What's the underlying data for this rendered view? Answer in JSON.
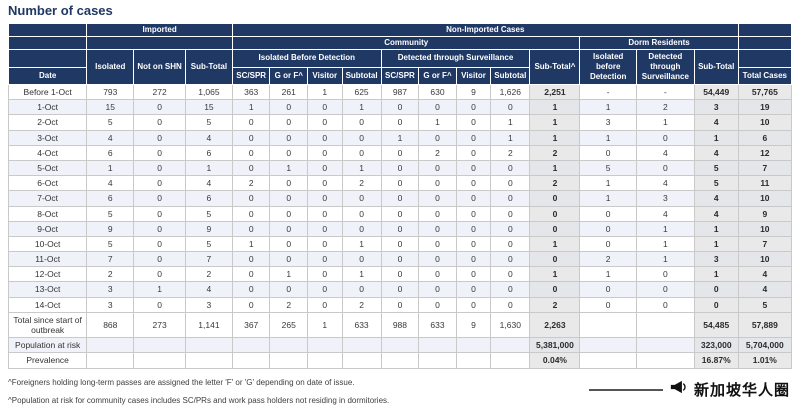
{
  "title": "Number of cases",
  "colors": {
    "header_bg": "#1f3864",
    "title_text": "#1f3864",
    "subtotal_column_bg": "#e9e9e9",
    "alt_row_bg": "#eff2f8",
    "grid_border": "#c9c9c9"
  },
  "header": {
    "imported": "Imported",
    "non_imported": "Non-Imported Cases",
    "community": "Community",
    "dorm_residents": "Dorm Residents",
    "isolated": "Isolated",
    "not_on_shn": "Not on SHN",
    "sub_total": "Sub-Total",
    "isolated_before_detection": "Isolated Before Detection",
    "detected_through_surveillance": "Detected through Surveillance",
    "community_sub_total": "Sub-Total^",
    "dorm_isolated_before_detection": "Isolated before Detection",
    "dorm_detected_through_surveillance": "Detected through Surveillance",
    "dorm_sub_total": "Sub-Total",
    "date": "Date",
    "sc_spr": "SC/SPR",
    "g_or_f": "G or F^",
    "visitor": "Visitor",
    "subtotal": "Subtotal",
    "total_cases": "Total Cases"
  },
  "table": {
    "rows": [
      {
        "label": "Before 1-Oct",
        "values": [
          "793",
          "272",
          "1,065",
          "363",
          "261",
          "1",
          "625",
          "987",
          "630",
          "9",
          "1,626",
          "2,251",
          "-",
          "-",
          "54,449",
          "57,765"
        ]
      },
      {
        "label": "1-Oct",
        "values": [
          "15",
          "0",
          "15",
          "1",
          "0",
          "0",
          "1",
          "0",
          "0",
          "0",
          "0",
          "1",
          "1",
          "2",
          "3",
          "19"
        ]
      },
      {
        "label": "2-Oct",
        "values": [
          "5",
          "0",
          "5",
          "0",
          "0",
          "0",
          "0",
          "0",
          "1",
          "0",
          "1",
          "1",
          "3",
          "1",
          "4",
          "10"
        ]
      },
      {
        "label": "3-Oct",
        "values": [
          "4",
          "0",
          "4",
          "0",
          "0",
          "0",
          "0",
          "1",
          "0",
          "0",
          "1",
          "1",
          "1",
          "0",
          "1",
          "6"
        ]
      },
      {
        "label": "4-Oct",
        "values": [
          "6",
          "0",
          "6",
          "0",
          "0",
          "0",
          "0",
          "0",
          "2",
          "0",
          "2",
          "2",
          "0",
          "4",
          "4",
          "12"
        ]
      },
      {
        "label": "5-Oct",
        "values": [
          "1",
          "0",
          "1",
          "0",
          "1",
          "0",
          "1",
          "0",
          "0",
          "0",
          "0",
          "1",
          "5",
          "0",
          "5",
          "7"
        ]
      },
      {
        "label": "6-Oct",
        "values": [
          "4",
          "0",
          "4",
          "2",
          "0",
          "0",
          "2",
          "0",
          "0",
          "0",
          "0",
          "2",
          "1",
          "4",
          "5",
          "11"
        ]
      },
      {
        "label": "7-Oct",
        "values": [
          "6",
          "0",
          "6",
          "0",
          "0",
          "0",
          "0",
          "0",
          "0",
          "0",
          "0",
          "0",
          "1",
          "3",
          "4",
          "10"
        ]
      },
      {
        "label": "8-Oct",
        "values": [
          "5",
          "0",
          "5",
          "0",
          "0",
          "0",
          "0",
          "0",
          "0",
          "0",
          "0",
          "0",
          "0",
          "4",
          "4",
          "9"
        ]
      },
      {
        "label": "9-Oct",
        "values": [
          "9",
          "0",
          "9",
          "0",
          "0",
          "0",
          "0",
          "0",
          "0",
          "0",
          "0",
          "0",
          "0",
          "1",
          "1",
          "10"
        ]
      },
      {
        "label": "10-Oct",
        "values": [
          "5",
          "0",
          "5",
          "1",
          "0",
          "0",
          "1",
          "0",
          "0",
          "0",
          "0",
          "1",
          "0",
          "1",
          "1",
          "7"
        ]
      },
      {
        "label": "11-Oct",
        "values": [
          "7",
          "0",
          "7",
          "0",
          "0",
          "0",
          "0",
          "0",
          "0",
          "0",
          "0",
          "0",
          "2",
          "1",
          "3",
          "10"
        ]
      },
      {
        "label": "12-Oct",
        "values": [
          "2",
          "0",
          "2",
          "0",
          "1",
          "0",
          "1",
          "0",
          "0",
          "0",
          "0",
          "1",
          "1",
          "0",
          "1",
          "4"
        ]
      },
      {
        "label": "13-Oct",
        "values": [
          "3",
          "1",
          "4",
          "0",
          "0",
          "0",
          "0",
          "0",
          "0",
          "0",
          "0",
          "0",
          "0",
          "0",
          "0",
          "4"
        ]
      },
      {
        "label": "14-Oct",
        "values": [
          "3",
          "0",
          "3",
          "0",
          "2",
          "0",
          "2",
          "0",
          "0",
          "0",
          "0",
          "2",
          "0",
          "0",
          "0",
          "5"
        ]
      },
      {
        "label": "Total since start of outbreak",
        "values": [
          "868",
          "273",
          "1,141",
          "367",
          "265",
          "1",
          "633",
          "988",
          "633",
          "9",
          "1,630",
          "2,263",
          "",
          "",
          "54,485",
          "57,889"
        ]
      },
      {
        "label": "Population at risk",
        "values": [
          "",
          "",
          "",
          "",
          "",
          "",
          "",
          "",
          "",
          "",
          "",
          "5,381,000",
          "",
          "",
          "323,000",
          "5,704,000"
        ]
      },
      {
        "label": "Prevalence",
        "values": [
          "",
          "",
          "",
          "",
          "",
          "",
          "",
          "",
          "",
          "",
          "",
          "0.04%",
          "",
          "",
          "16.87%",
          "1.01%"
        ]
      }
    ]
  },
  "footnotes": [
    "^Foreigners holding long-term passes are assigned the letter 'F' or 'G' depending on date of issue.",
    "^Population at risk for community cases includes SC/PRs and work pass holders not residing in dormitories."
  ],
  "watermark": {
    "text": "新加坡华人圈",
    "icon": "megaphone-icon"
  }
}
